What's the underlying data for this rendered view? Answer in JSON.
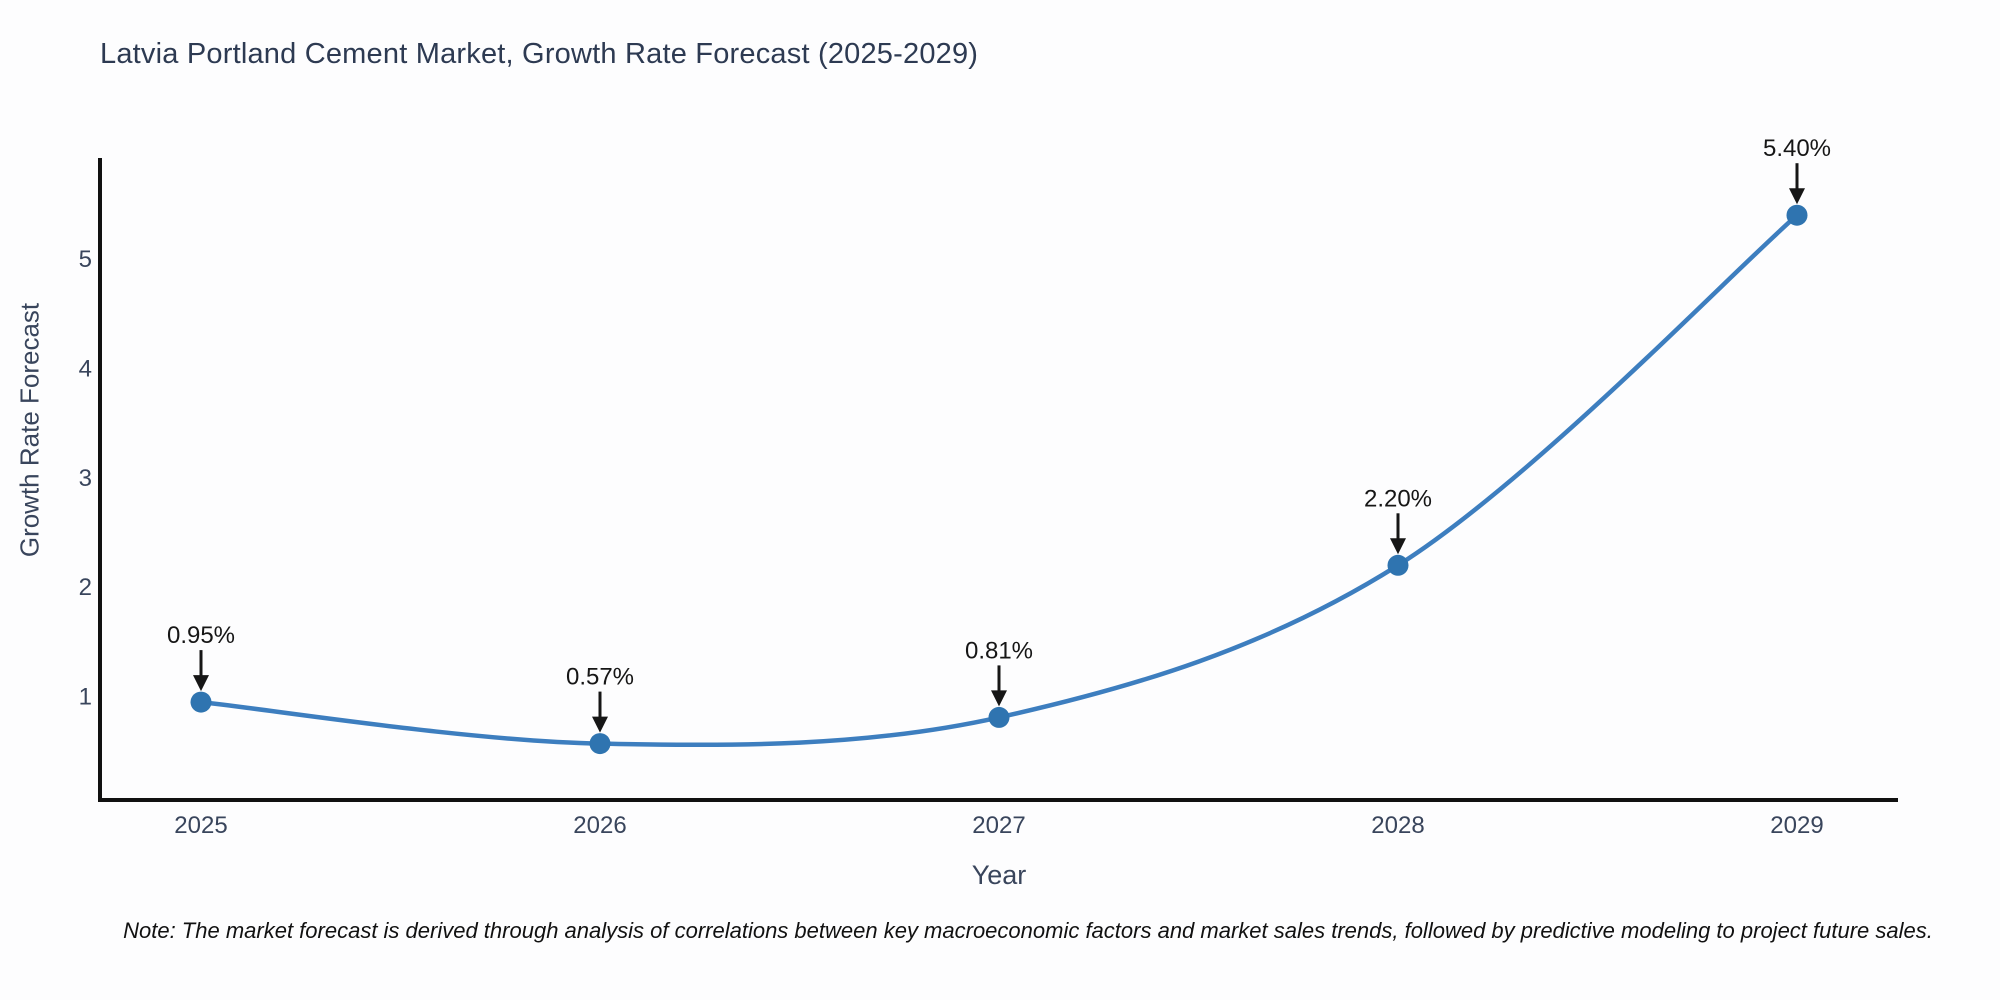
{
  "title": "Latvia Portland Cement Market, Growth Rate Forecast (2025-2029)",
  "note": "Note: The market forecast is derived through analysis of correlations between key macroeconomic factors and market sales trends, followed by predictive modeling to project future sales.",
  "chart_data": {
    "type": "line",
    "title": "Latvia Portland Cement Market, Growth Rate Forecast (2025-2029)",
    "xlabel": "Year",
    "ylabel": "Growth Rate Forecast",
    "categories": [
      "2025",
      "2026",
      "2027",
      "2028",
      "2029"
    ],
    "series": [
      {
        "name": "Growth Rate Forecast",
        "values": [
          0.95,
          0.57,
          0.81,
          2.2,
          5.4
        ]
      }
    ],
    "point_labels": [
      "0.95%",
      "0.57%",
      "0.81%",
      "2.20%",
      "5.40%"
    ],
    "yticks": [
      1,
      2,
      3,
      4,
      5
    ],
    "ylim": [
      0.05,
      5.9
    ],
    "line_shape": "spline",
    "grid": false,
    "legend_position": "none",
    "colors": {
      "line": "#3d7ebf",
      "marker": "#2f74b0",
      "axis": "#111111",
      "title": "#2d3a52",
      "tick_label": "#39455c",
      "annotation": "#161616",
      "background": "#fdfdfe"
    }
  }
}
